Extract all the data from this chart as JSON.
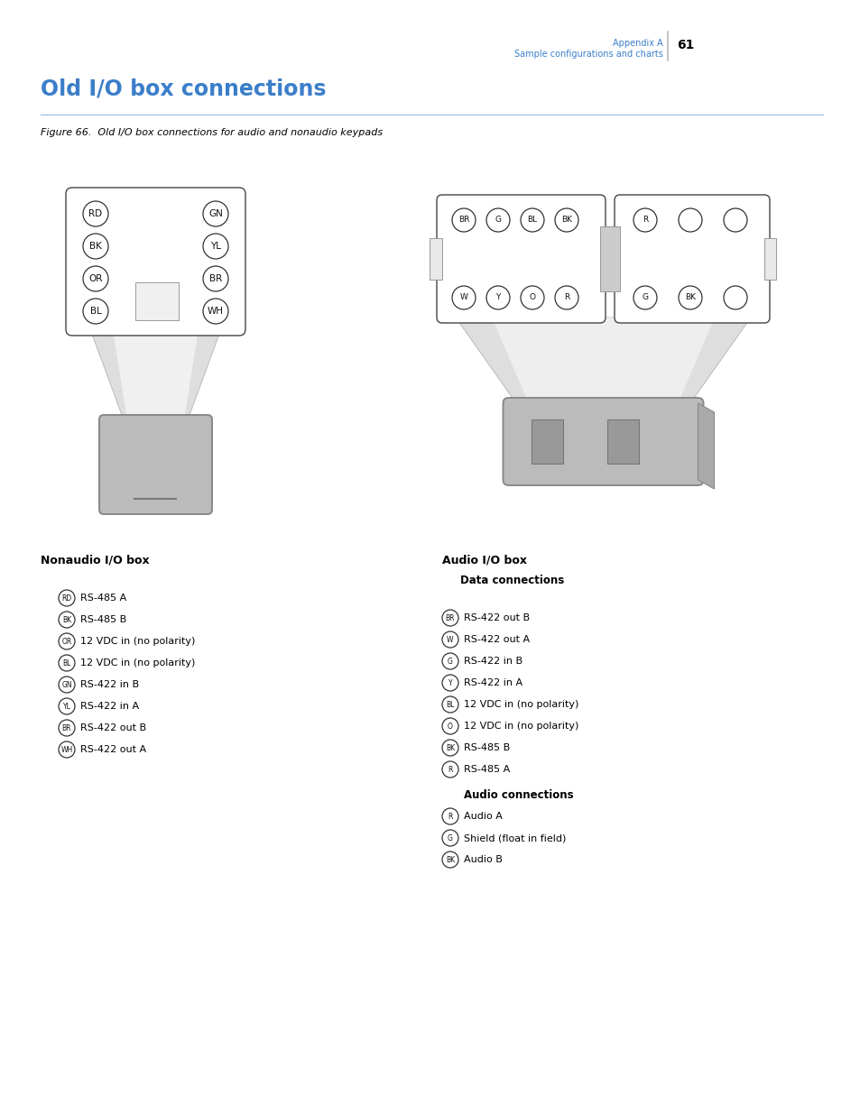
{
  "blue_color": "#3B7EC9",
  "text_color": "#000000",
  "title": "Old I/O box connections",
  "figure_caption": "Figure 66.  Old I/O box connections for audio and nonaudio keypads",
  "header_line1": "Appendix A",
  "header_line2": "Sample configurations and charts",
  "page_number": "61",
  "nonaudio_circles_left": [
    "RD",
    "BK",
    "OR",
    "BL"
  ],
  "nonaudio_circles_right": [
    "GN",
    "YL",
    "BR",
    "WH"
  ],
  "audio_top_left": [
    "BR",
    "G",
    "BL",
    "BK"
  ],
  "audio_top_right": [
    "R",
    "",
    ""
  ],
  "audio_bot_left": [
    "W",
    "Y",
    "O",
    "R"
  ],
  "audio_bot_right": [
    "G",
    "BK",
    ""
  ],
  "nonaudio_label": "Nonaudio I/O box",
  "audio_label": "Audio I/O box",
  "data_connections_label": "Data connections",
  "audio_connections_label": "Audio connections",
  "nonaudio_legend": [
    [
      "RD",
      "RS-485 A"
    ],
    [
      "BK",
      "RS-485 B"
    ],
    [
      "OR",
      "12 VDC in (no polarity)"
    ],
    [
      "BL",
      "12 VDC in (no polarity)"
    ],
    [
      "GN",
      "RS-422 in B"
    ],
    [
      "YL",
      "RS-422 in A"
    ],
    [
      "BR",
      "RS-422 out B"
    ],
    [
      "WH",
      "RS-422 out A"
    ]
  ],
  "audio_data_legend": [
    [
      "BR",
      "RS-422 out B"
    ],
    [
      "W",
      "RS-422 out A"
    ],
    [
      "G",
      "RS-422 in B"
    ],
    [
      "Y",
      "RS-422 in A"
    ],
    [
      "BL",
      "12 VDC in (no polarity)"
    ],
    [
      "O",
      "12 VDC in (no polarity)"
    ],
    [
      "BK",
      "RS-485 B"
    ],
    [
      "R",
      "RS-485 A"
    ]
  ],
  "audio_audio_legend": [
    [
      "R",
      "Audio A"
    ],
    [
      "G",
      "Shield (float in field)"
    ],
    [
      "BK",
      "Audio B"
    ]
  ]
}
